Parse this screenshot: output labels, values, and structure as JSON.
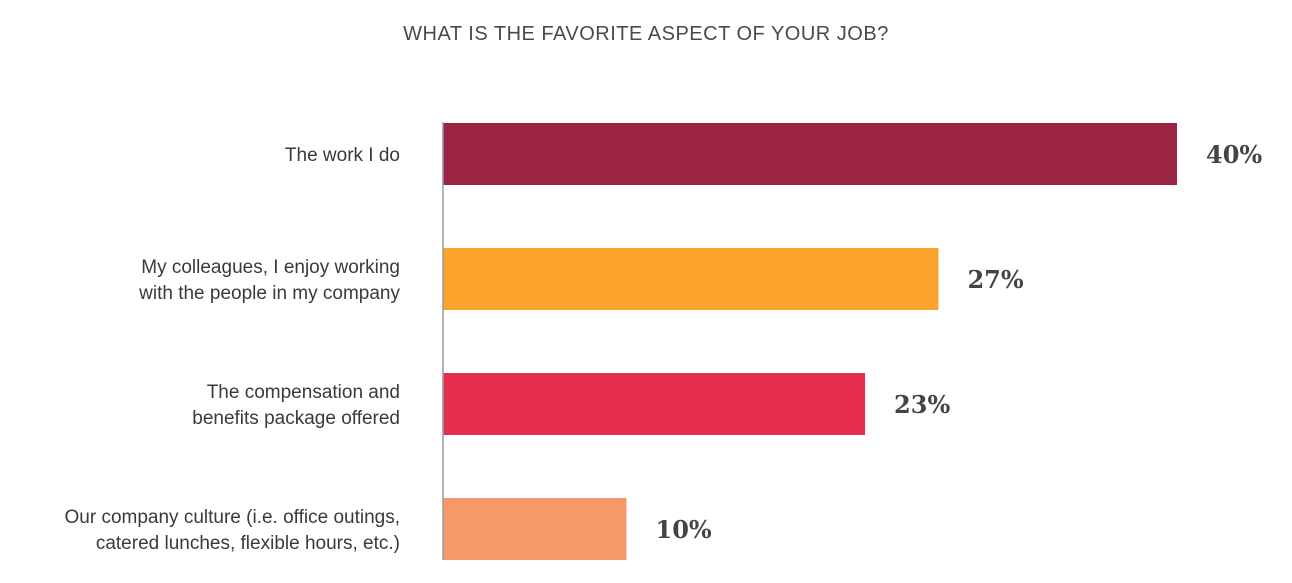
{
  "chart_data": {
    "type": "bar",
    "orientation": "horizontal",
    "title": "WHAT IS THE FAVORITE ASPECT OF YOUR JOB?",
    "categories": [
      [
        "The work I do"
      ],
      [
        "My colleagues, I enjoy working",
        "with the people in my company"
      ],
      [
        "The compensation and",
        "benefits package offered"
      ],
      [
        "Our company culture (i.e. office outings,",
        "catered lunches, flexible hours, etc.)"
      ]
    ],
    "values": [
      40,
      27,
      23,
      10
    ],
    "value_labels": [
      "40%",
      "27%",
      "23%",
      "10%"
    ],
    "colors": [
      "#9c2444",
      "#fba32d",
      "#e52d4f",
      "#f5986a"
    ],
    "xlim": [
      0,
      40
    ],
    "grid": false,
    "legend": "none"
  }
}
